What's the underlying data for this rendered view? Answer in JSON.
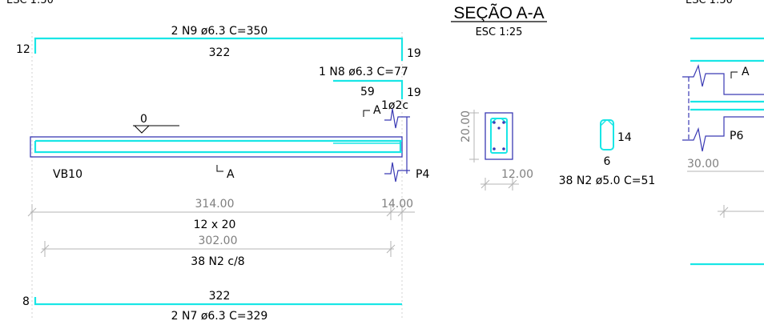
{
  "colors": {
    "rebar": "#19e6e6",
    "concrete": "#3a3ab4",
    "dimension": "#b4b4b4",
    "text": "#000000",
    "dim_text": "#808080"
  },
  "top_partial_left": "ESC 1:50",
  "top_partial_right": "ESC 1:50",
  "beam": {
    "name": "VB10",
    "section_mark": "A",
    "level": "0",
    "support_label": "P4",
    "hook_note": "1ø2c"
  },
  "bars": {
    "n9": {
      "label": "2 N9 ø6.3 C=350",
      "length": "322",
      "hook_left": "12",
      "hook_right": "19"
    },
    "n8": {
      "label": "1 N8 ø6.3 C=77",
      "length": "59",
      "hook_right": "19"
    },
    "n7": {
      "label": "2 N7 ø6.3 C=329",
      "length": "322",
      "hook_left": "8"
    }
  },
  "dimensions": {
    "span": "314.00",
    "support_width": "14.00",
    "section_size": "12 x 20",
    "stirrup_run": "302.00",
    "stirrup_spacing": "38 N2 c/8"
  },
  "section": {
    "title": "SEÇÃO A-A",
    "scale": "ESC 1:25",
    "height": "20.00",
    "width": "12.00",
    "stirrup_height": "14",
    "stirrup_width": "6",
    "stirrup_label": "38 N2 ø5.0 C=51"
  },
  "right_view": {
    "section_mark": "A",
    "support_label": "P6",
    "dimension": "30.00"
  }
}
